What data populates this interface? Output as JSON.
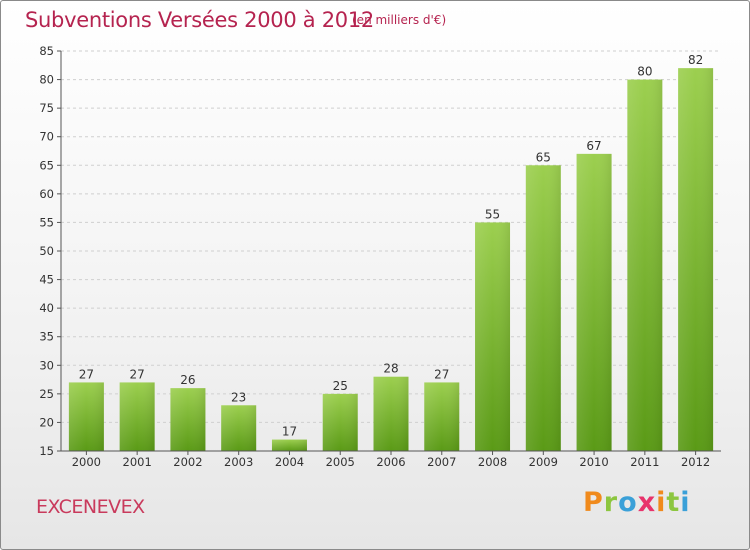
{
  "header": {
    "title": "Subventions Versées 2000 à 2012",
    "unit": "(en milliers d'€)"
  },
  "footer": {
    "commune": "EXCENEVEX",
    "brand_letters": [
      "P",
      "r",
      "o",
      "x",
      "i",
      "t",
      "i"
    ],
    "brand_colors": [
      "#f08a1c",
      "#8cc63f",
      "#3aa0d8",
      "#e8336b",
      "#f08a1c",
      "#8cc63f",
      "#3aa0d8"
    ]
  },
  "colors": {
    "bar_top": "#9ccf4f",
    "bar_bottom": "#5a9a16",
    "title": "#b5234f",
    "grid": "#cfcfcf"
  },
  "chart_data": {
    "type": "bar",
    "title": "Subventions Versées 2000 à 2012",
    "subtitle": "(en milliers d'€)",
    "categories": [
      "2000",
      "2001",
      "2002",
      "2003",
      "2004",
      "2005",
      "2006",
      "2007",
      "2008",
      "2009",
      "2010",
      "2011",
      "2012"
    ],
    "values": [
      27,
      27,
      26,
      23,
      17,
      25,
      28,
      27,
      55,
      65,
      67,
      80,
      82
    ],
    "ylim": [
      15,
      85
    ],
    "yticks": [
      15,
      20,
      25,
      30,
      35,
      40,
      45,
      50,
      55,
      60,
      65,
      70,
      75,
      80,
      85
    ],
    "grid": true,
    "legend": "none",
    "xlabel": "",
    "ylabel": ""
  }
}
